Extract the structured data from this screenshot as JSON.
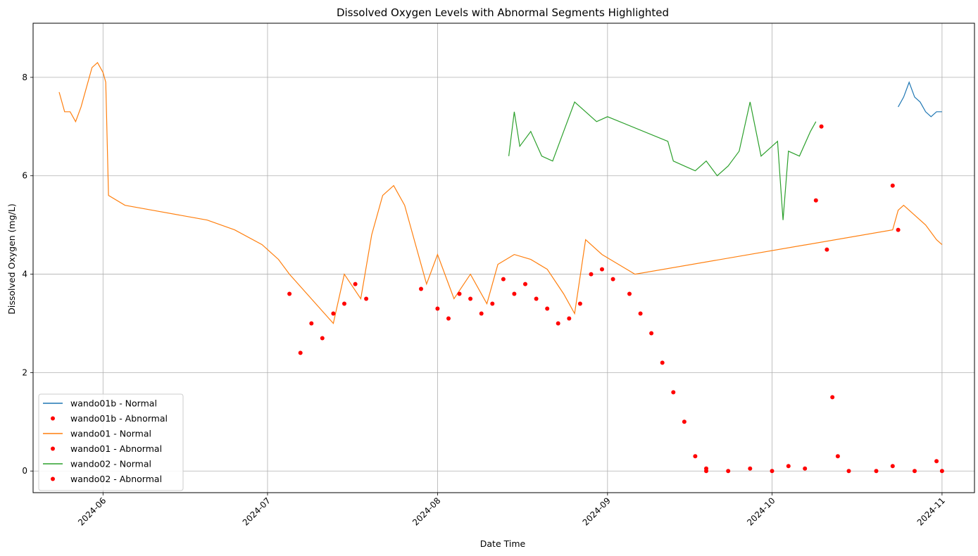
{
  "chart_data": {
    "type": "line",
    "title": "Dissolved Oxygen Levels with Abnormal Segments Highlighted",
    "xlabel": "Date Time",
    "ylabel": "Dissolved Oxygen (mg/L)",
    "x_type": "date",
    "xlim": [
      "2024-05-19T06:00",
      "2024-11-06T22:00"
    ],
    "ylim": [
      -0.44,
      9.1
    ],
    "x_ticks": [
      "2024-06-01",
      "2024-07-01",
      "2024-08-01",
      "2024-09-01",
      "2024-10-01",
      "2024-11-01"
    ],
    "x_tick_labels": [
      "2024-06",
      "2024-07",
      "2024-08",
      "2024-09",
      "2024-10",
      "2024-11"
    ],
    "y_ticks": [
      0,
      2,
      4,
      6,
      8
    ],
    "y_tick_labels": [
      "0",
      "2",
      "4",
      "6",
      "8"
    ],
    "grid": true,
    "legend_position": "lower-left",
    "colors": {
      "wando01b": "#1f77b4",
      "wando01": "#ff7f0e",
      "wando02": "#2ca02c",
      "abnormal": "#ff0000"
    },
    "series": [
      {
        "name": "wando01b - Normal",
        "kind": "line",
        "color": "#1f77b4",
        "points": [
          [
            "2024-10-24",
            7.4
          ],
          [
            "2024-10-25",
            7.6
          ],
          [
            "2024-10-26",
            7.9
          ],
          [
            "2024-10-27",
            7.6
          ],
          [
            "2024-10-28",
            7.5
          ],
          [
            "2024-10-29",
            7.3
          ],
          [
            "2024-10-30",
            7.2
          ],
          [
            "2024-10-31",
            7.3
          ],
          [
            "2024-11-01",
            7.3
          ]
        ]
      },
      {
        "name": "wando01b - Abnormal",
        "kind": "scatter",
        "color": "#ff0000",
        "points": []
      },
      {
        "name": "wando01 - Normal",
        "kind": "line",
        "color": "#ff7f0e",
        "points": [
          [
            "2024-05-24",
            7.7
          ],
          [
            "2024-05-25",
            7.3
          ],
          [
            "2024-05-26",
            7.3
          ],
          [
            "2024-05-27",
            7.1
          ],
          [
            "2024-05-28",
            7.4
          ],
          [
            "2024-05-29",
            7.8
          ],
          [
            "2024-05-30",
            8.2
          ],
          [
            "2024-05-31",
            8.3
          ],
          [
            "2024-06-01",
            8.1
          ],
          [
            "2024-06-01T12:00",
            7.9
          ],
          [
            "2024-06-02",
            5.6
          ],
          [
            "2024-06-05",
            5.4
          ],
          [
            "2024-06-10",
            5.3
          ],
          [
            "2024-06-15",
            5.2
          ],
          [
            "2024-06-20",
            5.1
          ],
          [
            "2024-06-25",
            4.9
          ],
          [
            "2024-06-30",
            4.6
          ],
          [
            "2024-07-03",
            4.3
          ],
          [
            "2024-07-05",
            4.0
          ],
          [
            "2024-07-13",
            3.0
          ],
          [
            "2024-07-15",
            4.0
          ],
          [
            "2024-07-18",
            3.5
          ],
          [
            "2024-07-20",
            4.8
          ],
          [
            "2024-07-22",
            5.6
          ],
          [
            "2024-07-24",
            5.8
          ],
          [
            "2024-07-26",
            5.4
          ],
          [
            "2024-07-28",
            4.6
          ],
          [
            "2024-07-30",
            3.8
          ],
          [
            "2024-08-01",
            4.4
          ],
          [
            "2024-08-04",
            3.5
          ],
          [
            "2024-08-07",
            4.0
          ],
          [
            "2024-08-10",
            3.4
          ],
          [
            "2024-08-12",
            4.2
          ],
          [
            "2024-08-15",
            4.4
          ],
          [
            "2024-08-18",
            4.3
          ],
          [
            "2024-08-21",
            4.1
          ],
          [
            "2024-08-24",
            3.6
          ],
          [
            "2024-08-26",
            3.2
          ],
          [
            "2024-08-28",
            4.7
          ],
          [
            "2024-08-31",
            4.4
          ],
          [
            "2024-09-03",
            4.2
          ],
          [
            "2024-09-06",
            4.0
          ],
          [
            "2024-10-23",
            4.9
          ],
          [
            "2024-10-24",
            5.3
          ],
          [
            "2024-10-25",
            5.4
          ],
          [
            "2024-10-27",
            5.2
          ],
          [
            "2024-10-29",
            5.0
          ],
          [
            "2024-10-31",
            4.7
          ],
          [
            "2024-11-01",
            4.6
          ]
        ]
      },
      {
        "name": "wando01 - Abnormal",
        "kind": "scatter",
        "color": "#ff0000",
        "points": [
          [
            "2024-07-05",
            3.6
          ],
          [
            "2024-07-07",
            2.4
          ],
          [
            "2024-07-09",
            3.0
          ],
          [
            "2024-07-11",
            2.7
          ],
          [
            "2024-07-13",
            3.2
          ],
          [
            "2024-07-15",
            3.4
          ],
          [
            "2024-07-17",
            3.8
          ],
          [
            "2024-07-19",
            3.5
          ],
          [
            "2024-07-29",
            3.7
          ],
          [
            "2024-08-01",
            3.3
          ],
          [
            "2024-08-03",
            3.1
          ],
          [
            "2024-08-05",
            3.6
          ],
          [
            "2024-08-07",
            3.5
          ],
          [
            "2024-08-09",
            3.2
          ],
          [
            "2024-08-11",
            3.4
          ],
          [
            "2024-08-13",
            3.9
          ],
          [
            "2024-08-15",
            3.6
          ],
          [
            "2024-08-17",
            3.8
          ],
          [
            "2024-08-19",
            3.5
          ],
          [
            "2024-08-21",
            3.3
          ],
          [
            "2024-08-23",
            3.0
          ],
          [
            "2024-08-25",
            3.1
          ],
          [
            "2024-08-27",
            3.4
          ],
          [
            "2024-08-29",
            4.0
          ],
          [
            "2024-08-31",
            4.1
          ],
          [
            "2024-09-02",
            3.9
          ],
          [
            "2024-09-05",
            3.6
          ],
          [
            "2024-09-07",
            3.2
          ],
          [
            "2024-09-09",
            2.8
          ],
          [
            "2024-09-11",
            2.2
          ],
          [
            "2024-09-13",
            1.6
          ],
          [
            "2024-09-15",
            1.0
          ],
          [
            "2024-09-17",
            0.3
          ],
          [
            "2024-09-19",
            0.05
          ],
          [
            "2024-10-23",
            5.8
          ],
          [
            "2024-10-24",
            4.9
          ]
        ]
      },
      {
        "name": "wando02 - Normal",
        "kind": "line",
        "color": "#2ca02c",
        "points": [
          [
            "2024-08-14",
            6.4
          ],
          [
            "2024-08-15",
            7.3
          ],
          [
            "2024-08-16",
            6.6
          ],
          [
            "2024-08-18",
            6.9
          ],
          [
            "2024-08-20",
            6.4
          ],
          [
            "2024-08-22",
            6.3
          ],
          [
            "2024-08-24",
            6.9
          ],
          [
            "2024-08-26",
            7.5
          ],
          [
            "2024-08-28",
            7.3
          ],
          [
            "2024-08-30",
            7.1
          ],
          [
            "2024-09-01",
            7.2
          ],
          [
            "2024-09-12",
            6.7
          ],
          [
            "2024-09-13",
            6.3
          ],
          [
            "2024-09-15",
            6.2
          ],
          [
            "2024-09-17",
            6.1
          ],
          [
            "2024-09-19",
            6.3
          ],
          [
            "2024-09-21",
            6.0
          ],
          [
            "2024-09-23",
            6.2
          ],
          [
            "2024-09-25",
            6.5
          ],
          [
            "2024-09-27",
            7.5
          ],
          [
            "2024-09-29",
            6.4
          ],
          [
            "2024-10-01",
            6.6
          ],
          [
            "2024-10-02",
            6.7
          ],
          [
            "2024-10-03",
            5.1
          ],
          [
            "2024-10-04",
            6.5
          ],
          [
            "2024-10-06",
            6.4
          ],
          [
            "2024-10-08",
            6.9
          ],
          [
            "2024-10-09",
            7.1
          ]
        ]
      },
      {
        "name": "wando02 - Abnormal",
        "kind": "scatter",
        "color": "#ff0000",
        "points": [
          [
            "2024-09-19",
            0.0
          ],
          [
            "2024-09-23",
            0.0
          ],
          [
            "2024-09-27",
            0.05
          ],
          [
            "2024-10-01",
            0.0
          ],
          [
            "2024-10-04",
            0.1
          ],
          [
            "2024-10-07",
            0.05
          ],
          [
            "2024-10-09",
            5.5
          ],
          [
            "2024-10-10",
            7.0
          ],
          [
            "2024-10-11",
            4.5
          ],
          [
            "2024-10-12",
            1.5
          ],
          [
            "2024-10-13",
            0.3
          ],
          [
            "2024-10-15",
            0.0
          ],
          [
            "2024-10-20",
            0.0
          ],
          [
            "2024-10-23",
            0.1
          ],
          [
            "2024-10-27",
            0.0
          ],
          [
            "2024-10-31",
            0.2
          ],
          [
            "2024-11-01",
            0.0
          ]
        ]
      }
    ]
  }
}
